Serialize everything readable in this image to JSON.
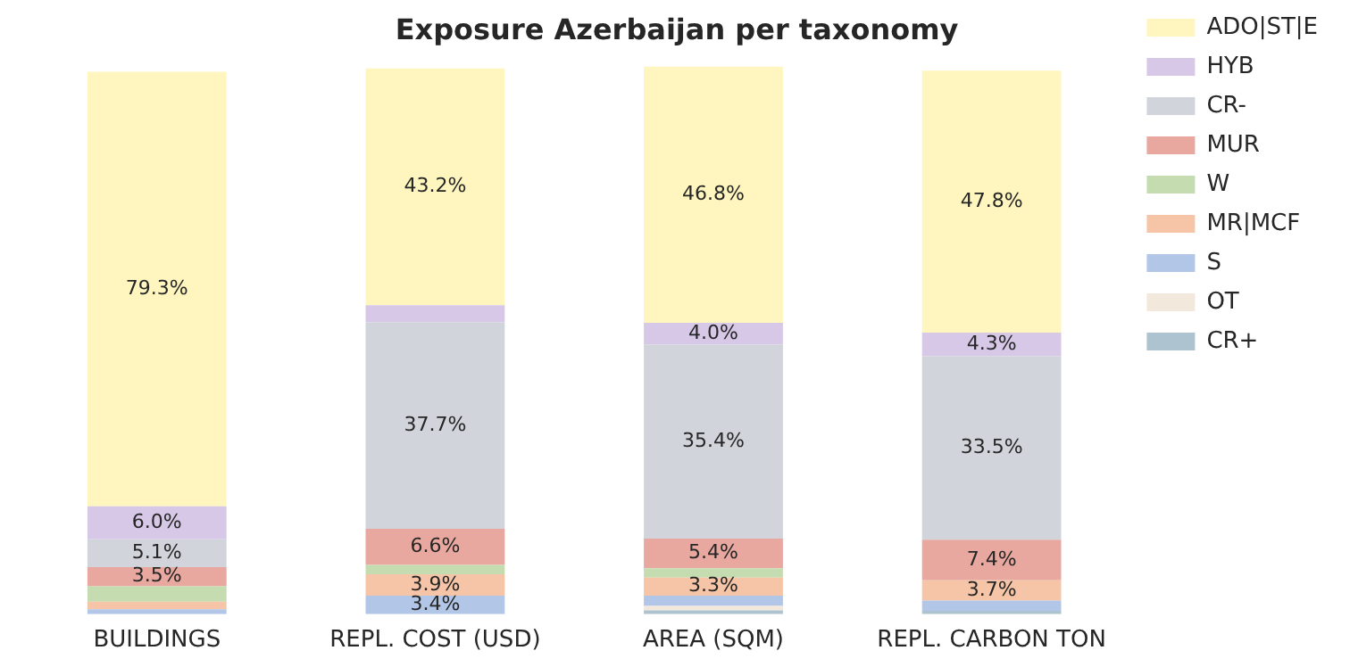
{
  "chart_data": {
    "type": "bar",
    "title": "Exposure Azerbaijan per taxonomy",
    "stacked": true,
    "legend": "right",
    "grid": false,
    "ylim": [
      0,
      100
    ],
    "categories": [
      "BUILDINGS",
      "REPL. COST (USD)",
      "AREA (SQM)",
      "REPL. CARBON TON"
    ],
    "series": [
      {
        "name": "CR+",
        "color": "#adc4d0",
        "values": [
          null,
          null,
          0.7,
          0.6
        ],
        "value_labels": [
          null,
          null,
          null,
          null
        ]
      },
      {
        "name": "OT",
        "color": "#f2e8dc",
        "values": [
          null,
          null,
          0.8,
          null
        ],
        "value_labels": [
          null,
          null,
          null,
          null
        ]
      },
      {
        "name": "S",
        "color": "#b2c6e8",
        "values": [
          0.9,
          3.4,
          1.9,
          1.9
        ],
        "value_labels": [
          null,
          "3.4%",
          null,
          null
        ]
      },
      {
        "name": "MR|MCF",
        "color": "#f6c4a6",
        "values": [
          1.4,
          3.9,
          3.3,
          3.7
        ],
        "value_labels": [
          null,
          "3.9%",
          "3.3%",
          "3.7%"
        ]
      },
      {
        "name": "W",
        "color": "#c4dcb0",
        "values": [
          2.8,
          1.7,
          1.7,
          null
        ],
        "value_labels": [
          null,
          null,
          null,
          null
        ]
      },
      {
        "name": "MUR",
        "color": "#e8a89f",
        "values": [
          3.5,
          6.6,
          5.4,
          7.4
        ],
        "value_labels": [
          "3.5%",
          "6.6%",
          "5.4%",
          "7.4%"
        ]
      },
      {
        "name": "CR-",
        "color": "#d2d4dc",
        "values": [
          5.1,
          37.7,
          35.4,
          33.5
        ],
        "value_labels": [
          "5.1%",
          "37.7%",
          "35.4%",
          "33.5%"
        ]
      },
      {
        "name": "HYB",
        "color": "#d8c8e8",
        "values": [
          6.0,
          3.1,
          4.0,
          4.3
        ],
        "value_labels": [
          "6.0%",
          null,
          "4.0%",
          "4.3%"
        ]
      },
      {
        "name": "ADO|ST|E",
        "color": "#fff6bf",
        "values": [
          79.3,
          43.2,
          46.8,
          47.8
        ],
        "value_labels": [
          "79.3%",
          "43.2%",
          "46.8%",
          "47.8%"
        ]
      }
    ]
  }
}
